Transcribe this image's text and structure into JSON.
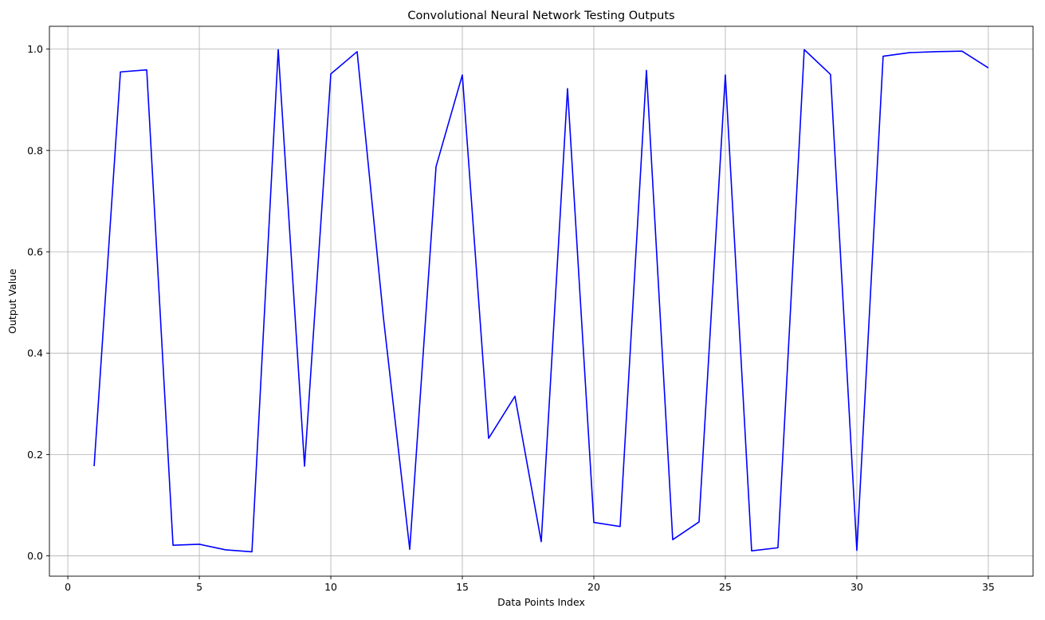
{
  "chart_data": {
    "type": "line",
    "title": "Convolutional Neural Network Testing Outputs",
    "xlabel": "Data Points Index",
    "ylabel": "Output Value",
    "xlim": [
      -0.7,
      36.7
    ],
    "ylim": [
      -0.04,
      1.045
    ],
    "xticks": [
      0,
      5,
      10,
      15,
      20,
      25,
      30,
      35
    ],
    "yticks": [
      0.0,
      0.2,
      0.4,
      0.6,
      0.8,
      1.0
    ],
    "ytick_labels": [
      "0.0",
      "0.2",
      "0.4",
      "0.6",
      "0.8",
      "1.0"
    ],
    "grid": true,
    "line_color": "#0000ff",
    "series": [
      {
        "x": [
          1,
          2,
          3,
          4,
          5,
          6,
          7,
          8,
          9,
          10,
          11,
          12,
          13,
          14,
          15,
          16,
          17,
          18,
          19,
          20,
          21,
          22,
          23,
          24,
          25,
          26,
          27,
          28,
          29,
          30,
          31,
          32,
          33,
          34,
          35
        ],
        "values": [
          0.177,
          0.955,
          0.959,
          0.021,
          0.023,
          0.012,
          0.008,
          0.999,
          0.177,
          0.951,
          0.995,
          0.47,
          0.013,
          0.768,
          0.949,
          0.232,
          0.315,
          0.028,
          0.922,
          0.066,
          0.058,
          0.958,
          0.032,
          0.067,
          0.949,
          0.01,
          0.016,
          0.999,
          0.95,
          0.011,
          0.986,
          0.993,
          0.995,
          0.996,
          0.963
        ]
      }
    ]
  }
}
